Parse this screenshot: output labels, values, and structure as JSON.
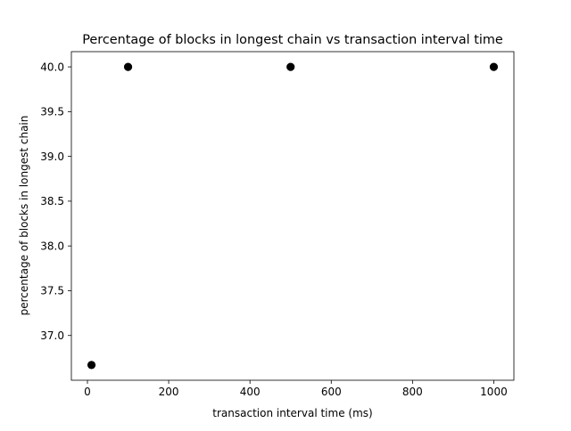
{
  "chart_data": {
    "type": "scatter",
    "title": "Percentage of blocks in longest chain vs transaction interval time",
    "xlabel": "transaction interval time (ms)",
    "ylabel": "percentage of blocks in longest chain",
    "x": [
      10,
      100,
      500,
      1000
    ],
    "y": [
      36.67,
      40.0,
      40.0,
      40.0
    ],
    "xlim": [
      -39.5,
      1049.5
    ],
    "ylim": [
      36.5,
      40.17
    ],
    "xticks": [
      0,
      200,
      400,
      600,
      800,
      1000
    ],
    "xtick_labels": [
      "0",
      "200",
      "400",
      "600",
      "800",
      "1000"
    ],
    "yticks": [
      37.0,
      37.5,
      38.0,
      38.5,
      39.0,
      39.5,
      40.0
    ],
    "ytick_labels": [
      "37.0",
      "37.5",
      "38.0",
      "38.5",
      "39.0",
      "39.5",
      "40.0"
    ],
    "grid": false,
    "marker_color": "#000000"
  }
}
